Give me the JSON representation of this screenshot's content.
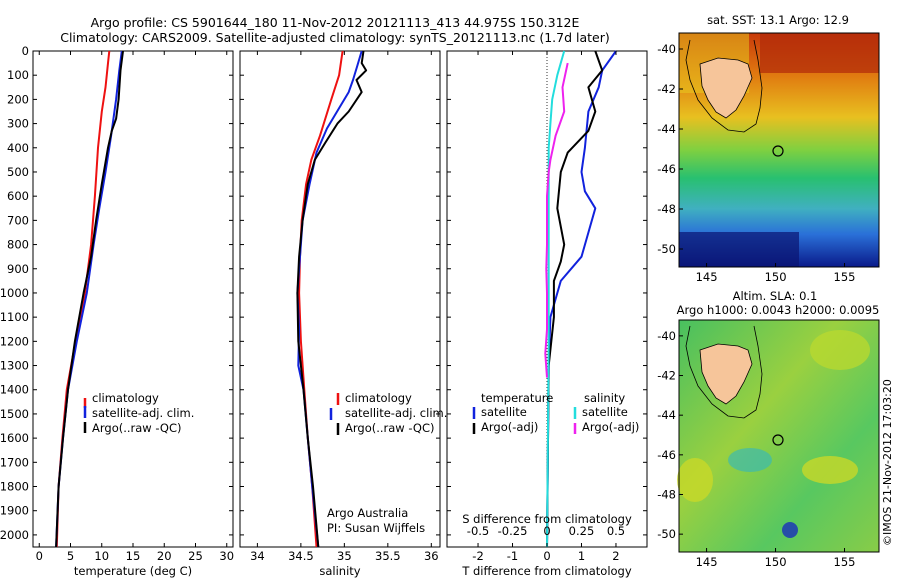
{
  "title_line1": "Argo profile: CS 5901644_180 11-Nov-2012 20121113_413 44.975S 150.312E",
  "title_line2": "Climatology: CARS2009. Satellite-adjusted climatology: synTS_20121113.nc (1.7d later)",
  "colors": {
    "climatology": "#ee1111",
    "satellite": "#1122dd",
    "argo": "#000000",
    "cyan": "#22dddd",
    "magenta": "#ee22ee"
  },
  "chart_data": [
    {
      "type": "line",
      "id": "temperature",
      "xlabel": "temperature (deg C)",
      "xlim": [
        -1,
        31
      ],
      "xticks": [
        "0",
        "5",
        "10",
        "15",
        "20",
        "25",
        "30"
      ],
      "ylim": [
        0,
        2050
      ],
      "yticks": [
        "0",
        "100",
        "200",
        "300",
        "400",
        "500",
        "600",
        "700",
        "800",
        "900",
        "1000",
        "1100",
        "1200",
        "1300",
        "1400",
        "1500",
        "1600",
        "1700",
        "1800",
        "1900",
        "2000"
      ],
      "legend": [
        "climatology",
        "satellite-adj. clim.",
        "Argo(..raw -QC)"
      ],
      "series": [
        {
          "name": "climatology",
          "color": "#ee1111",
          "points": [
            [
              11.2,
              0
            ],
            [
              11,
              50
            ],
            [
              10.6,
              150
            ],
            [
              10,
              250
            ],
            [
              9.4,
              400
            ],
            [
              8.9,
              600
            ],
            [
              8.3,
              800
            ],
            [
              7.3,
              1000
            ],
            [
              5.8,
              1200
            ],
            [
              4.4,
              1400
            ],
            [
              3.7,
              1600
            ],
            [
              3.1,
              1800
            ],
            [
              2.8,
              2050
            ]
          ]
        },
        {
          "name": "satellite-adj. clim.",
          "color": "#1122dd",
          "points": [
            [
              13.2,
              0
            ],
            [
              12.8,
              80
            ],
            [
              12.3,
              200
            ],
            [
              11.5,
              350
            ],
            [
              10.6,
              500
            ],
            [
              9.6,
              650
            ],
            [
              8.7,
              800
            ],
            [
              7.6,
              1000
            ],
            [
              6,
              1200
            ],
            [
              4.6,
              1400
            ],
            [
              3.8,
              1600
            ],
            [
              3.1,
              1800
            ],
            [
              2.7,
              2050
            ]
          ]
        },
        {
          "name": "Argo(..raw -QC)",
          "color": "#000000",
          "points": [
            [
              13.4,
              0
            ],
            [
              13,
              80
            ],
            [
              12.7,
              200
            ],
            [
              12.3,
              280
            ],
            [
              11.6,
              330
            ],
            [
              11,
              400
            ],
            [
              10,
              550
            ],
            [
              9.1,
              700
            ],
            [
              8.3,
              850
            ],
            [
              7.1,
              1000
            ],
            [
              5.7,
              1200
            ],
            [
              4.6,
              1400
            ],
            [
              3.8,
              1600
            ],
            [
              3.1,
              1800
            ],
            [
              2.7,
              2050
            ]
          ]
        }
      ]
    },
    {
      "type": "line",
      "id": "salinity",
      "xlabel": "salinity",
      "xlim": [
        33.8,
        36.1
      ],
      "xticks": [
        "34",
        "34.5",
        "35",
        "35.5",
        "36"
      ],
      "ylim": [
        0,
        2050
      ],
      "legend": [
        "climatology",
        "satellite-adj. clim.",
        "Argo(..raw -QC)"
      ],
      "annotation": [
        "Argo Australia",
        "PI: Susan Wijffels"
      ],
      "series": [
        {
          "name": "climatology",
          "color": "#ee1111",
          "points": [
            [
              34.98,
              0
            ],
            [
              34.94,
              100
            ],
            [
              34.85,
              200
            ],
            [
              34.72,
              350
            ],
            [
              34.62,
              450
            ],
            [
              34.56,
              550
            ],
            [
              34.51,
              700
            ],
            [
              34.49,
              850
            ],
            [
              34.48,
              1000
            ],
            [
              34.5,
              1200
            ],
            [
              34.54,
              1400
            ],
            [
              34.58,
              1600
            ],
            [
              34.63,
              1800
            ],
            [
              34.68,
              2050
            ]
          ]
        },
        {
          "name": "satellite-adj. clim.",
          "color": "#1122dd",
          "points": [
            [
              35.2,
              0
            ],
            [
              35.15,
              60
            ],
            [
              35.1,
              120
            ],
            [
              35.05,
              170
            ],
            [
              34.95,
              230
            ],
            [
              34.8,
              320
            ],
            [
              34.68,
              420
            ],
            [
              34.6,
              550
            ],
            [
              34.52,
              700
            ],
            [
              34.49,
              850
            ],
            [
              34.46,
              1000
            ],
            [
              34.48,
              1150
            ],
            [
              34.47,
              1300
            ],
            [
              34.53,
              1400
            ],
            [
              34.58,
              1600
            ],
            [
              34.63,
              1800
            ],
            [
              34.7,
              2050
            ]
          ]
        },
        {
          "name": "Argo(..raw -QC)",
          "color": "#000000",
          "points": [
            [
              35.22,
              0
            ],
            [
              35.2,
              50
            ],
            [
              35.25,
              80
            ],
            [
              35.14,
              120
            ],
            [
              35.2,
              170
            ],
            [
              35.05,
              250
            ],
            [
              34.92,
              300
            ],
            [
              34.78,
              380
            ],
            [
              34.66,
              450
            ],
            [
              34.58,
              550
            ],
            [
              34.52,
              700
            ],
            [
              34.48,
              850
            ],
            [
              34.46,
              1000
            ],
            [
              34.47,
              1200
            ],
            [
              34.53,
              1400
            ],
            [
              34.58,
              1600
            ],
            [
              34.64,
              1800
            ],
            [
              34.7,
              2050
            ]
          ]
        }
      ]
    },
    {
      "type": "line",
      "id": "differences",
      "xlabel": "T difference from climatology",
      "top_label": "S difference from climatology",
      "xlim": [
        -2.9,
        2.9
      ],
      "xticks": [
        "-2",
        "-1",
        "0",
        "1",
        "2"
      ],
      "sxticks": [
        "-0.5",
        "-0.25",
        "0",
        "0.25",
        "0.5"
      ],
      "ylim": [
        0,
        2050
      ],
      "legend": {
        "temperature": "temperature",
        "salinity": "salinity",
        "sat": "satellite",
        "argo": "Argo(-adj)"
      },
      "series": [
        {
          "name": "T satellite",
          "color": "#1122dd",
          "points": [
            [
              2,
              0
            ],
            [
              1.6,
              80
            ],
            [
              1.5,
              150
            ],
            [
              1.2,
              250
            ],
            [
              1.1,
              400
            ],
            [
              1,
              500
            ],
            [
              1.1,
              580
            ],
            [
              1.4,
              650
            ],
            [
              1.2,
              750
            ],
            [
              1,
              850
            ],
            [
              0.4,
              950
            ],
            [
              0.1,
              1100
            ],
            [
              0.05,
              1300
            ],
            [
              0,
              2050
            ]
          ]
        },
        {
          "name": "T Argo(-adj)",
          "color": "#000000",
          "points": [
            [
              1.4,
              0
            ],
            [
              1.6,
              80
            ],
            [
              1.2,
              150
            ],
            [
              1.4,
              250
            ],
            [
              1.2,
              330
            ],
            [
              0.6,
              420
            ],
            [
              0.4,
              500
            ],
            [
              0.3,
              650
            ],
            [
              0.5,
              800
            ],
            [
              0.4,
              870
            ],
            [
              0.2,
              950
            ],
            [
              0.2,
              1100
            ],
            [
              0.05,
              1300
            ],
            [
              0,
              2050
            ]
          ]
        },
        {
          "name": "S satellite",
          "color": "#22dddd",
          "points": [
            [
              0.5,
              0
            ],
            [
              0.3,
              100
            ],
            [
              0.15,
              200
            ],
            [
              0.1,
              300
            ],
            [
              0.05,
              400
            ],
            [
              0.05,
              1200
            ],
            [
              0,
              2050
            ]
          ]
        },
        {
          "name": "S Argo(-adj)",
          "color": "#ee22ee",
          "points": [
            [
              0.6,
              50
            ],
            [
              0.45,
              150
            ],
            [
              0.5,
              250
            ],
            [
              0.25,
              350
            ],
            [
              0.1,
              450
            ],
            [
              0.05,
              500
            ],
            [
              0,
              600
            ],
            [
              0,
              800
            ],
            [
              -0.02,
              900
            ],
            [
              0,
              1000
            ],
            [
              0,
              1150
            ],
            [
              -0.05,
              1250
            ],
            [
              0,
              1350
            ]
          ]
        }
      ]
    }
  ],
  "maps": {
    "top": {
      "title": "sat. SST: 13.1  Argo: 12.9",
      "yticks": [
        "-40",
        "-42",
        "-44",
        "-46",
        "-48",
        "-50"
      ],
      "xticks": [
        "145",
        "150",
        "155"
      ]
    },
    "bottom": {
      "title1": "Altim. SLA: 0.1",
      "title2": "Argo h1000: 0.0043 h2000: 0.0095",
      "yticks": [
        "-40",
        "-42",
        "-44",
        "-46",
        "-48",
        "-50"
      ],
      "xticks": [
        "145",
        "150",
        "155"
      ]
    }
  },
  "credit": "©IMOS 21-Nov-2012 17:03:20"
}
